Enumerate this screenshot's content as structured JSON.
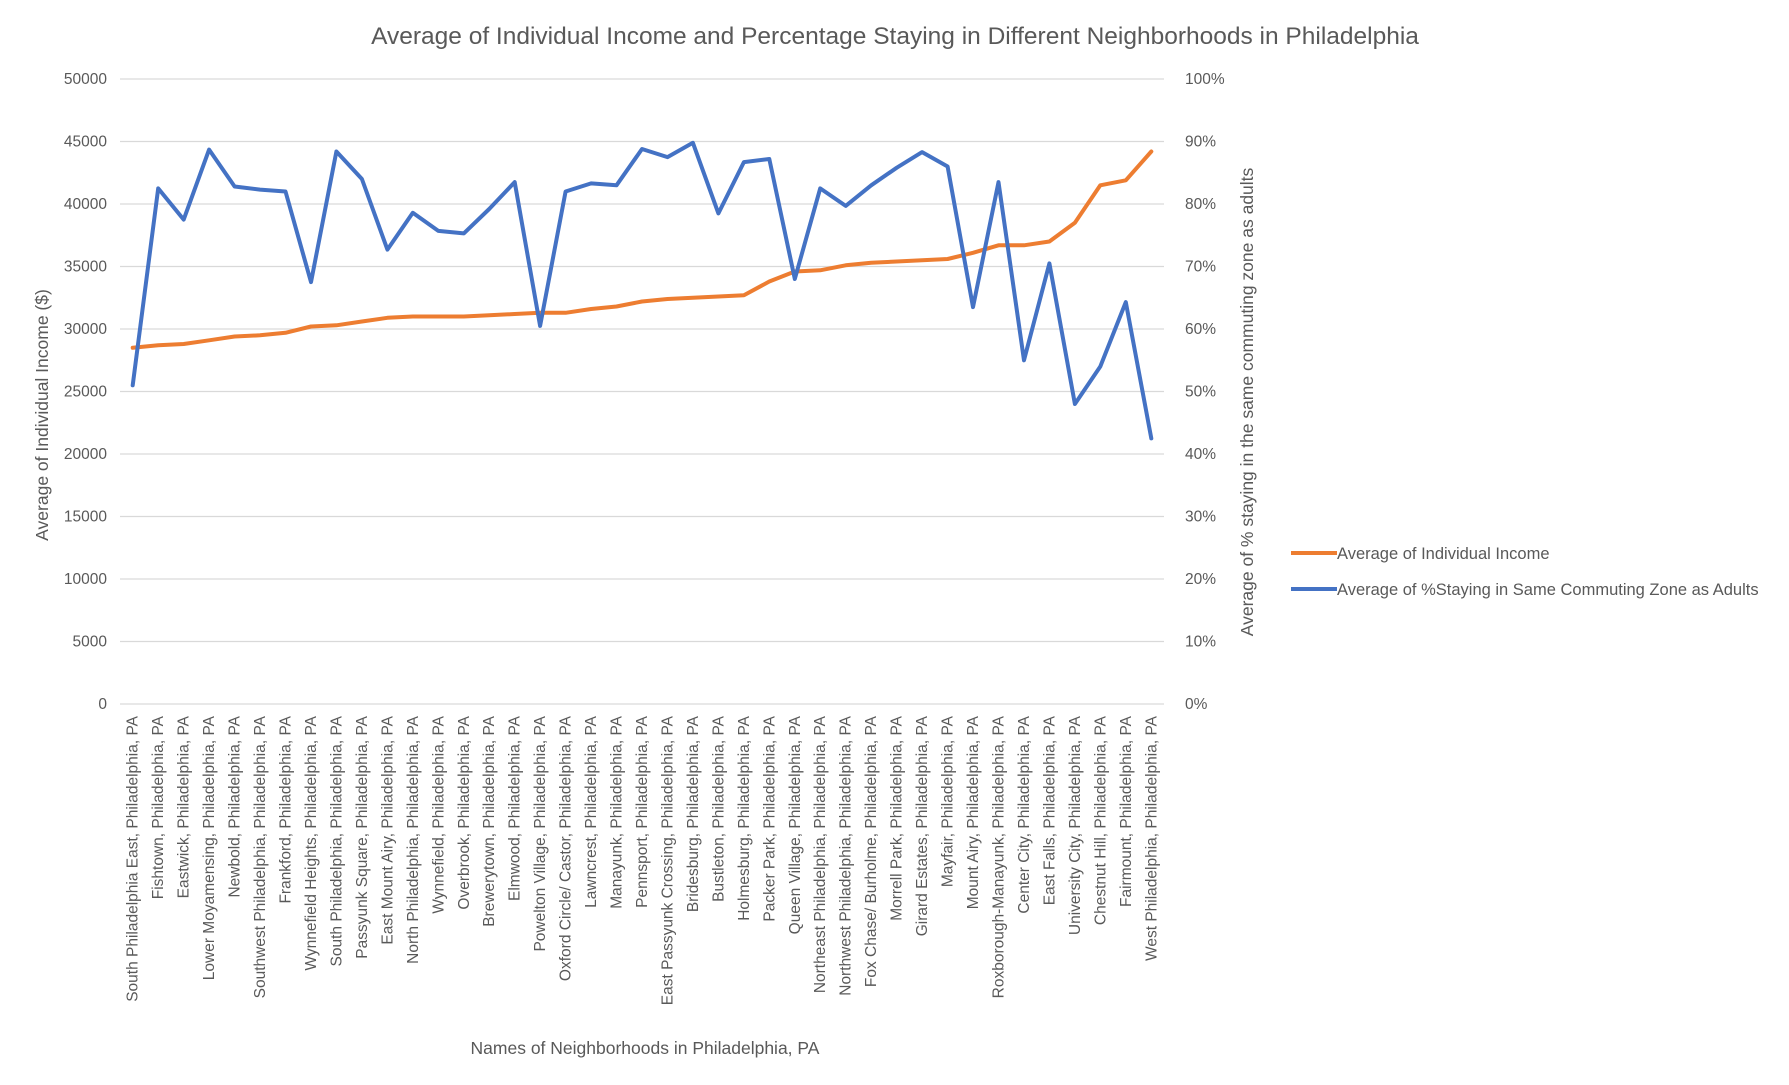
{
  "chart_data": {
    "type": "line",
    "title": "Average of Individual Income and Percentage Staying in Different Neighborhoods in Philadelphia",
    "xlabel": "Names of Neighborhoods in Philadelphia, PA",
    "ylabel": "Average of Individual Income ($)",
    "y2label": "Average of % staying in the same commuting zone as adults",
    "ylim": [
      0,
      50000
    ],
    "y2lim": [
      0,
      1
    ],
    "yticks": [
      "0",
      "5000",
      "10000",
      "15000",
      "20000",
      "25000",
      "30000",
      "35000",
      "40000",
      "45000",
      "50000"
    ],
    "y2ticks": [
      "0%",
      "10%",
      "20%",
      "30%",
      "40%",
      "50%",
      "60%",
      "70%",
      "80%",
      "90%",
      "100%"
    ],
    "grid": true,
    "legend_position": "right",
    "categories": [
      "South Philadelphia East, Philadelphia, PA",
      "Fishtown, Philadelphia, PA",
      "Eastwick, Philadelphia, PA",
      "Lower Moyamensing, Philadelphia, PA",
      "Newbold, Philadelphia, PA",
      "Southwest Philadelphia, Philadelphia, PA",
      "Frankford, Philadelphia, PA",
      "Wynnefield Heights, Philadelphia, PA",
      "South Philadelphia, Philadelphia, PA",
      "Passyunk Square, Philadelphia, PA",
      "East Mount Airy, Philadelphia, PA",
      "North Philadelphia, Philadelphia, PA",
      "Wynnefield, Philadelphia, PA",
      "Overbrook, Philadelphia, PA",
      "Brewerytown, Philadelphia, PA",
      "Elmwood, Philadelphia, PA",
      "Powelton Village, Philadelphia, PA",
      "Oxford Circle/ Castor, Philadelphia, PA",
      "Lawncrest, Philadelphia, PA",
      "Manayunk, Philadelphia, PA",
      "Pennsport, Philadelphia, PA",
      "East Passyunk Crossing, Philadelphia, PA",
      "Bridesburg, Philadelphia, PA",
      "Bustleton, Philadelphia, PA",
      "Holmesburg, Philadelphia, PA",
      "Packer Park, Philadelphia, PA",
      "Queen Village, Philadelphia, PA",
      "Northeast Philadelphia, Philadelphia, PA",
      "Northwest Philadelphia, Philadelphia, PA",
      "Fox Chase/ Burholme, Philadelphia, PA",
      "Morrell Park, Philadelphia, PA",
      "Girard Estates, Philadelphia, PA",
      "Mayfair, Philadelphia, PA",
      "Mount Airy, Philadelphia, PA",
      "Roxborough-Manayunk, Philadelphia, PA",
      "Center City, Philadelphia, PA",
      "East Falls, Philadelphia, PA",
      "University City, Philadelphia, PA",
      "Chestnut Hill, Philadelphia, PA",
      "Fairmount, Philadelphia, PA",
      "West Philadelphia, Philadelphia, PA"
    ],
    "series": [
      {
        "name": "Average of Individual Income",
        "axis": "left",
        "color": "#ED7D31",
        "values": [
          28500,
          28700,
          28800,
          29100,
          29400,
          29500,
          29700,
          30200,
          30300,
          30600,
          30900,
          31000,
          31000,
          31000,
          31100,
          31200,
          31300,
          31300,
          31600,
          31800,
          32200,
          32400,
          32500,
          32600,
          32700,
          33800,
          34600,
          34700,
          35100,
          35300,
          35400,
          35500,
          35600,
          36100,
          36700,
          36700,
          37000,
          38500,
          41500,
          41900,
          44200
        ]
      },
      {
        "name": "Average of %Staying in Same Commuting Zone as Adults",
        "axis": "right",
        "color": "#4472C4",
        "values": [
          0.51,
          0.825,
          0.775,
          0.887,
          0.828,
          0.823,
          0.82,
          0.675,
          0.884,
          0.84,
          0.727,
          0.786,
          0.757,
          0.753,
          0.792,
          0.835,
          0.605,
          0.82,
          0.833,
          0.83,
          0.888,
          0.875,
          0.898,
          0.785,
          0.867,
          0.872,
          0.68,
          0.825,
          0.797,
          0.83,
          0.858,
          0.883,
          0.86,
          0.635,
          0.835,
          0.55,
          0.705,
          0.48,
          0.54,
          0.643,
          0.425
        ]
      }
    ]
  }
}
